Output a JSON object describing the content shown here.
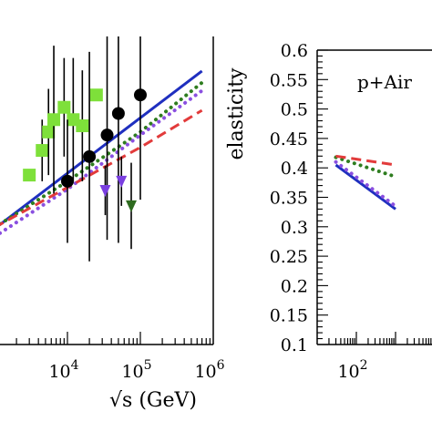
{
  "chart_data": [
    {
      "type": "scatter",
      "xscale": "log",
      "xlim": [
        1000,
        1000000
      ],
      "ylim": [
        0.1,
        0.6
      ],
      "xlabel": "√s (GeV)",
      "ylabel": "",
      "xticks": [
        {
          "value": 10000,
          "base": "10",
          "exp": "4"
        },
        {
          "value": 100000,
          "base": "10",
          "exp": "5"
        },
        {
          "value": 1000000,
          "base": "10",
          "exp": "6"
        }
      ],
      "series": [
        {
          "style": "line",
          "color": "#1f2fbf",
          "dash": "solid",
          "x": [
            1000,
            700000
          ],
          "y": [
            0.288,
            0.544
          ]
        },
        {
          "style": "line",
          "color": "#2e7d1f",
          "dash": "dotted",
          "x": [
            1000,
            10000,
            100000,
            700000
          ],
          "y": [
            0.29,
            0.365,
            0.445,
            0.525
          ]
        },
        {
          "style": "line",
          "color": "#8a4fe0",
          "dash": "dotted",
          "x": [
            1000,
            10000,
            100000,
            700000
          ],
          "y": [
            0.275,
            0.352,
            0.44,
            0.512
          ]
        },
        {
          "style": "line",
          "color": "#e23b3b",
          "dash": "dashed",
          "x": [
            1000,
            10000,
            100000,
            700000
          ],
          "y": [
            0.29,
            0.355,
            0.42,
            0.48
          ]
        },
        {
          "style": "markers",
          "marker": "square",
          "color": "#7ee03a",
          "x": [
            3000,
            4500,
            5500,
            6500,
            9000,
            12000,
            16000,
            25000
          ],
          "y": [
            0.375,
            0.415,
            0.445,
            0.465,
            0.485,
            0.465,
            0.455,
            0.505
          ],
          "err": [
            0,
            0.05,
            0.07,
            0.12,
            0.08,
            0.1,
            0.09,
            0
          ],
          "errcolor": "#000000"
        },
        {
          "style": "markers",
          "marker": "circle",
          "color": "#000000",
          "x": [
            10000,
            20000,
            35000,
            50000,
            100000
          ],
          "y": [
            0.365,
            0.405,
            0.44,
            0.475,
            0.505
          ],
          "err": [
            0.1,
            0.17,
            0.17,
            0.21,
            0.17
          ],
          "errcolor": "#000000"
        },
        {
          "style": "markers",
          "marker": "triangle-down",
          "color": "#7a3fe0",
          "x": [
            33000,
            55000
          ],
          "y": [
            0.35,
            0.365
          ],
          "err": [
            0.04,
            0.04
          ],
          "errcolor": "#000000"
        },
        {
          "style": "markers",
          "marker": "triangle-down",
          "color": "#2e6b1f",
          "x": [
            75000
          ],
          "y": [
            0.325
          ],
          "err": [
            0.07
          ],
          "errcolor": "#000000"
        }
      ]
    },
    {
      "type": "line",
      "xscale": "log",
      "xlim": [
        10,
        100000
      ],
      "ylim": [
        0.1,
        0.6
      ],
      "ylabel": "elasticity",
      "annotation": "p+Air",
      "yticks": [
        "0.1",
        "0.15",
        "0.2",
        "0.25",
        "0.3",
        "0.35",
        "0.4",
        "0.45",
        "0.5",
        "0.55",
        "0.6"
      ],
      "xticks": [
        {
          "value": 100,
          "base": "10",
          "exp": "2"
        }
      ],
      "series": [
        {
          "color": "#1f2fbf",
          "dash": "solid",
          "x": [
            30,
            1000
          ],
          "y": [
            0.405,
            0.33
          ]
        },
        {
          "color": "#8a4fe0",
          "dash": "dotted",
          "x": [
            30,
            1000
          ],
          "y": [
            0.41,
            0.335
          ]
        },
        {
          "color": "#2e7d1f",
          "dash": "dotted",
          "x": [
            30,
            1000
          ],
          "y": [
            0.418,
            0.385
          ]
        },
        {
          "color": "#e23b3b",
          "dash": "dashed",
          "x": [
            30,
            1000
          ],
          "y": [
            0.42,
            0.405
          ]
        }
      ]
    }
  ]
}
